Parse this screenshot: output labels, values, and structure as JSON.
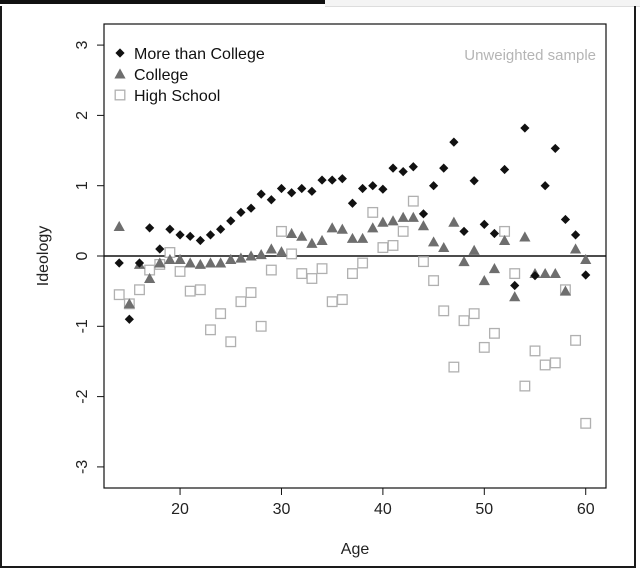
{
  "chart_data": {
    "type": "scatter",
    "xlabel": "Age",
    "ylabel": "Ideology",
    "note": "Unweighted sample",
    "xlim": [
      12.5,
      62
    ],
    "ylim": [
      -3.3,
      3.3
    ],
    "xticks": [
      20,
      30,
      40,
      50,
      60
    ],
    "yticks": [
      -3,
      -2,
      -1,
      0,
      1,
      2,
      3
    ],
    "reference_line_y": 0,
    "legend_position": "top-left",
    "series": [
      {
        "name": "More than College",
        "marker": "diamond",
        "color": "#111111",
        "points": [
          [
            14,
            -0.1
          ],
          [
            15,
            -0.9
          ],
          [
            16,
            -0.1
          ],
          [
            17,
            0.4
          ],
          [
            18,
            0.1
          ],
          [
            19,
            0.38
          ],
          [
            20,
            0.3
          ],
          [
            21,
            0.28
          ],
          [
            22,
            0.22
          ],
          [
            23,
            0.3
          ],
          [
            24,
            0.38
          ],
          [
            25,
            0.5
          ],
          [
            26,
            0.62
          ],
          [
            27,
            0.68
          ],
          [
            28,
            0.88
          ],
          [
            29,
            0.8
          ],
          [
            30,
            0.96
          ],
          [
            31,
            0.9
          ],
          [
            32,
            0.96
          ],
          [
            33,
            0.92
          ],
          [
            34,
            1.08
          ],
          [
            35,
            1.08
          ],
          [
            36,
            1.1
          ],
          [
            37,
            0.75
          ],
          [
            38,
            0.96
          ],
          [
            39,
            1.0
          ],
          [
            40,
            0.95
          ],
          [
            41,
            1.25
          ],
          [
            42,
            1.2
          ],
          [
            43,
            1.27
          ],
          [
            44,
            0.6
          ],
          [
            45,
            1.0
          ],
          [
            46,
            1.25
          ],
          [
            47,
            1.62
          ],
          [
            48,
            0.35
          ],
          [
            49,
            1.07
          ],
          [
            50,
            0.45
          ],
          [
            51,
            0.32
          ],
          [
            52,
            1.23
          ],
          [
            53,
            -0.42
          ],
          [
            54,
            1.82
          ],
          [
            55,
            -0.28
          ],
          [
            56,
            1.0
          ],
          [
            57,
            1.53
          ],
          [
            58,
            0.52
          ],
          [
            59,
            0.3
          ],
          [
            60,
            -0.27
          ]
        ]
      },
      {
        "name": "College",
        "marker": "triangle",
        "color": "#6e6e6e",
        "points": [
          [
            14,
            0.42
          ],
          [
            15,
            -0.68
          ],
          [
            16,
            -0.12
          ],
          [
            17,
            -0.32
          ],
          [
            18,
            -0.1
          ],
          [
            19,
            -0.05
          ],
          [
            20,
            -0.05
          ],
          [
            21,
            -0.1
          ],
          [
            22,
            -0.12
          ],
          [
            23,
            -0.1
          ],
          [
            24,
            -0.1
          ],
          [
            25,
            -0.05
          ],
          [
            26,
            -0.03
          ],
          [
            27,
            0.0
          ],
          [
            28,
            0.02
          ],
          [
            29,
            0.1
          ],
          [
            30,
            0.06
          ],
          [
            31,
            0.32
          ],
          [
            32,
            0.28
          ],
          [
            33,
            0.18
          ],
          [
            34,
            0.22
          ],
          [
            35,
            0.4
          ],
          [
            36,
            0.38
          ],
          [
            37,
            0.25
          ],
          [
            38,
            0.25
          ],
          [
            39,
            0.4
          ],
          [
            40,
            0.48
          ],
          [
            41,
            0.5
          ],
          [
            42,
            0.55
          ],
          [
            43,
            0.55
          ],
          [
            44,
            0.43
          ],
          [
            45,
            0.2
          ],
          [
            46,
            0.12
          ],
          [
            47,
            0.48
          ],
          [
            48,
            -0.08
          ],
          [
            49,
            0.08
          ],
          [
            50,
            -0.35
          ],
          [
            51,
            -0.18
          ],
          [
            52,
            0.22
          ],
          [
            53,
            -0.58
          ],
          [
            54,
            0.27
          ],
          [
            55,
            -0.25
          ],
          [
            56,
            -0.25
          ],
          [
            57,
            -0.25
          ],
          [
            58,
            -0.5
          ],
          [
            59,
            0.1
          ],
          [
            60,
            -0.05
          ]
        ]
      },
      {
        "name": "High School",
        "marker": "square-open",
        "color": "#b0b0b0",
        "points": [
          [
            14,
            -0.55
          ],
          [
            15,
            -0.68
          ],
          [
            16,
            -0.48
          ],
          [
            17,
            -0.2
          ],
          [
            18,
            -0.12
          ],
          [
            19,
            0.05
          ],
          [
            20,
            -0.22
          ],
          [
            21,
            -0.5
          ],
          [
            22,
            -0.48
          ],
          [
            23,
            -1.05
          ],
          [
            24,
            -0.82
          ],
          [
            25,
            -1.22
          ],
          [
            26,
            -0.65
          ],
          [
            27,
            -0.52
          ],
          [
            28,
            -1.0
          ],
          [
            29,
            -0.2
          ],
          [
            30,
            0.35
          ],
          [
            31,
            0.03
          ],
          [
            32,
            -0.25
          ],
          [
            33,
            -0.32
          ],
          [
            34,
            -0.18
          ],
          [
            35,
            -0.65
          ],
          [
            36,
            -0.62
          ],
          [
            37,
            -0.25
          ],
          [
            38,
            -0.1
          ],
          [
            39,
            0.62
          ],
          [
            40,
            0.12
          ],
          [
            41,
            0.15
          ],
          [
            42,
            0.35
          ],
          [
            43,
            0.78
          ],
          [
            44,
            -0.08
          ],
          [
            45,
            -0.35
          ],
          [
            46,
            -0.78
          ],
          [
            47,
            -1.58
          ],
          [
            48,
            -0.92
          ],
          [
            49,
            -0.82
          ],
          [
            50,
            -1.3
          ],
          [
            51,
            -1.1
          ],
          [
            52,
            0.35
          ],
          [
            53,
            -0.25
          ],
          [
            54,
            -1.85
          ],
          [
            55,
            -1.35
          ],
          [
            56,
            -1.55
          ],
          [
            57,
            -1.52
          ],
          [
            58,
            -0.48
          ],
          [
            59,
            -1.2
          ],
          [
            60,
            -2.38
          ]
        ]
      }
    ]
  }
}
